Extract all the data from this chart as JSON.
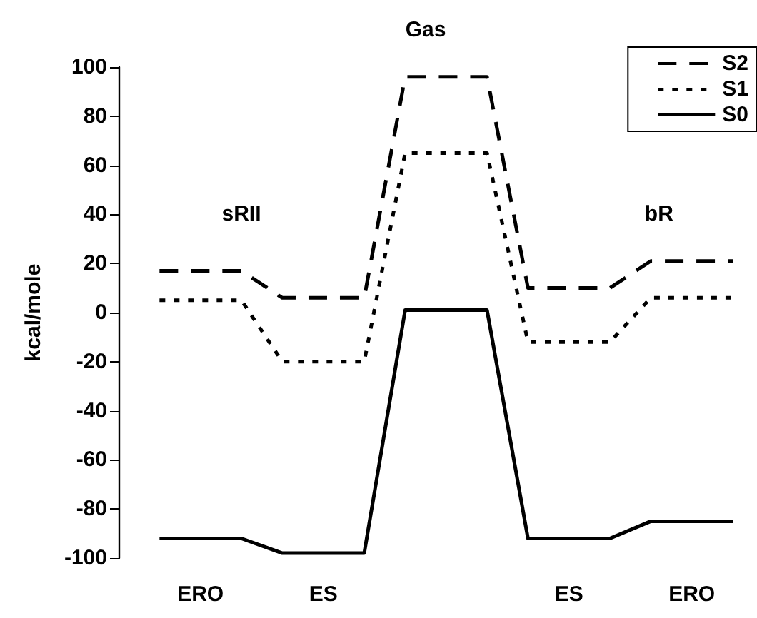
{
  "chart_data": {
    "type": "line",
    "ylabel": "kcal/mole",
    "ylim": [
      -100,
      100
    ],
    "yticks": [
      -100,
      -80,
      -60,
      -40,
      -20,
      0,
      20,
      40,
      60,
      80,
      100
    ],
    "categories": [
      null,
      null,
      "ERO",
      null,
      null,
      "ES",
      null,
      null,
      null,
      null,
      null,
      "ES",
      null,
      null,
      "ERO",
      null
    ],
    "series": [
      {
        "name": "S2",
        "color": "#000000",
        "line_style": "dashed",
        "values": [
          null,
          17,
          null,
          17,
          6,
          null,
          6,
          96,
          null,
          96,
          10,
          null,
          10,
          21,
          null,
          21
        ]
      },
      {
        "name": "S1",
        "color": "#000000",
        "line_style": "dotted",
        "values": [
          null,
          5,
          null,
          5,
          -20,
          null,
          -20,
          65,
          null,
          65,
          -12,
          null,
          -12,
          6,
          null,
          6
        ]
      },
      {
        "name": "S0",
        "color": "#000000",
        "line_style": "solid",
        "values": [
          null,
          -92,
          null,
          -92,
          -98,
          null,
          -98,
          1,
          null,
          1,
          -92,
          null,
          -92,
          -85,
          null,
          -85
        ]
      }
    ],
    "annotations": [
      "Gas",
      "sRII",
      "bR"
    ],
    "legend": "top right",
    "grid": false,
    "marker": "none"
  }
}
